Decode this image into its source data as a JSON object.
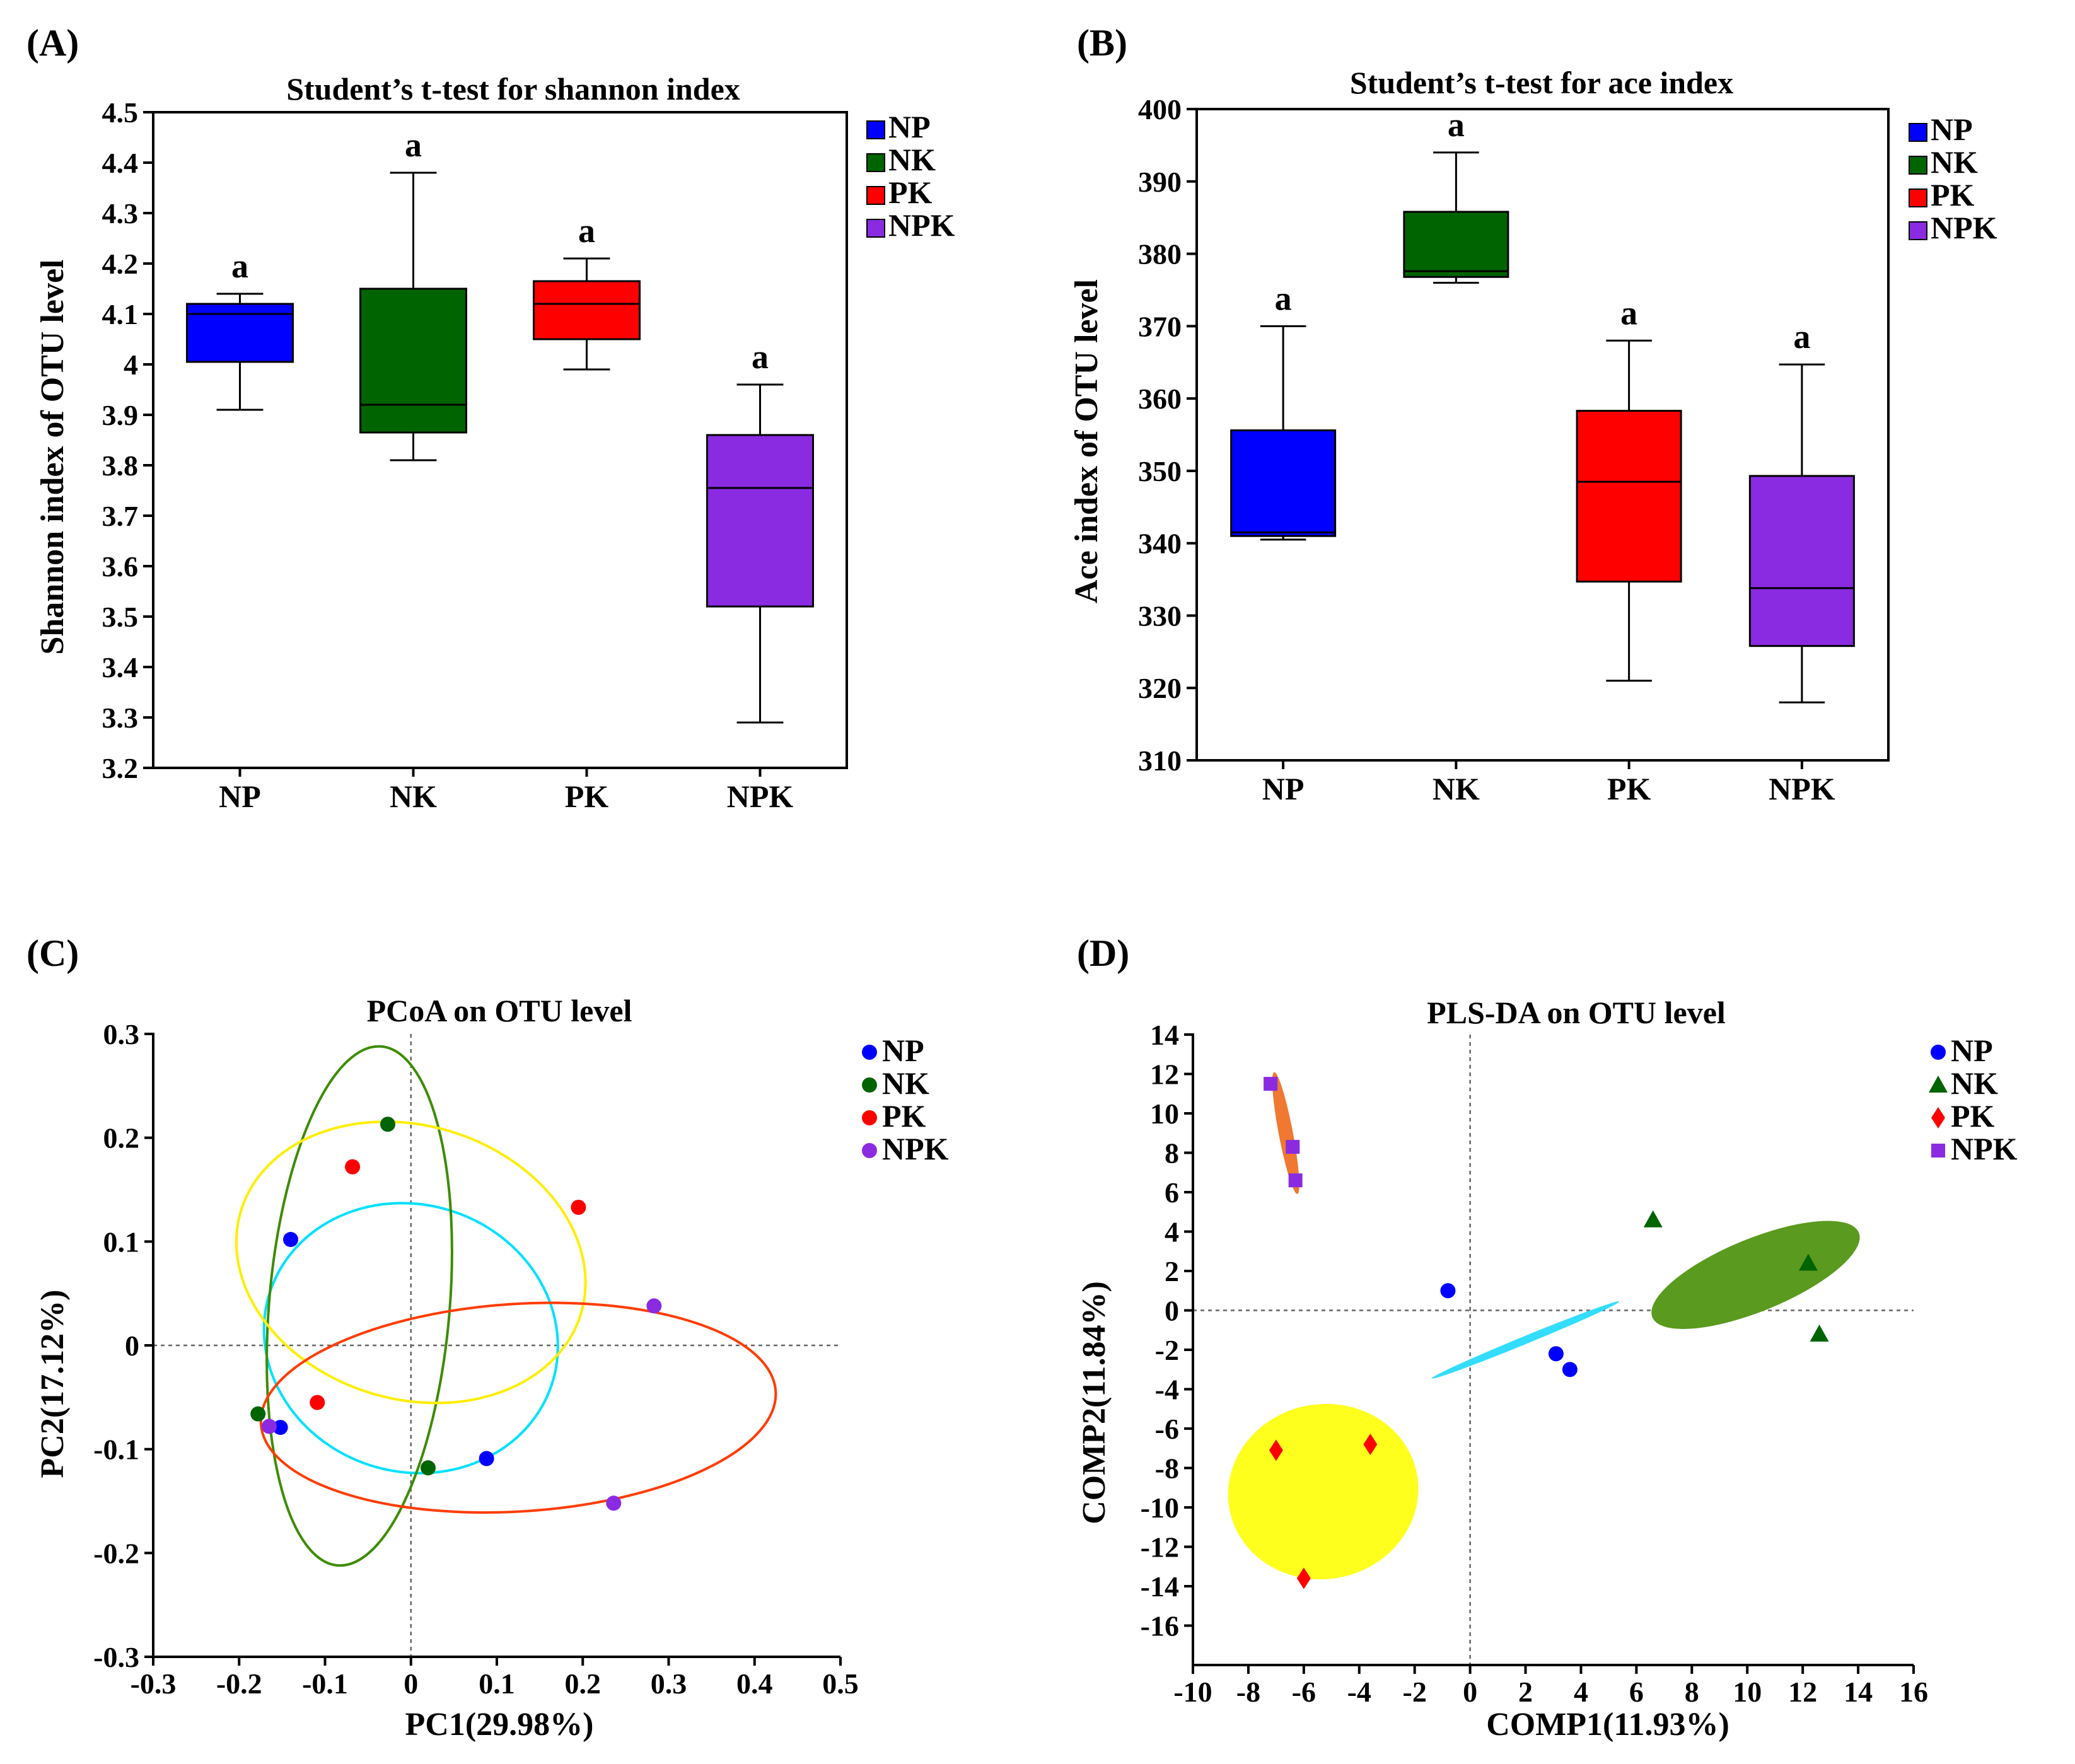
{
  "chart_data": [
    {
      "type": "box",
      "panel_label": "(A)",
      "title": "Student’s t-test for shannon index",
      "xlabel": "",
      "ylabel": "Shannon index of OTU level",
      "ylim": [
        3.2,
        4.5
      ],
      "yticks": [
        3.2,
        3.3,
        3.4,
        3.5,
        3.6,
        3.7,
        3.8,
        3.9,
        4,
        4.1,
        4.2,
        4.3,
        4.4,
        4.5
      ],
      "ytick_labels": [
        "3.2",
        "3.3",
        "3.4",
        "3.5",
        "3.6",
        "3.7",
        "3.8",
        "3.9",
        "4",
        "4.1",
        "4.2",
        "4.3",
        "4.4",
        "4.5"
      ],
      "categories": [
        "NP",
        "NK",
        "PK",
        "NPK"
      ],
      "colors": [
        "#0000ff",
        "#006400",
        "#ff0000",
        "#8a2be2"
      ],
      "boxes": [
        {
          "name": "NP",
          "min": 3.91,
          "q1": 4.005,
          "median": 4.1,
          "q3": 4.12,
          "max": 4.14,
          "sig": "a"
        },
        {
          "name": "NK",
          "min": 3.81,
          "q1": 3.865,
          "median": 3.92,
          "q3": 4.15,
          "max": 4.38,
          "sig": "a"
        },
        {
          "name": "PK",
          "min": 3.99,
          "q1": 4.05,
          "median": 4.12,
          "q3": 4.165,
          "max": 4.21,
          "sig": "a"
        },
        {
          "name": "NPK",
          "min": 3.29,
          "q1": 3.52,
          "median": 3.755,
          "q3": 3.86,
          "max": 3.96,
          "sig": "a"
        }
      ],
      "legend": [
        {
          "label": "NP",
          "color": "#0000ff"
        },
        {
          "label": "NK",
          "color": "#006400"
        },
        {
          "label": "PK",
          "color": "#ff0000"
        },
        {
          "label": "NPK",
          "color": "#8a2be2"
        }
      ]
    },
    {
      "type": "box",
      "panel_label": "(B)",
      "title": "Student’s t-test for ace index",
      "xlabel": "",
      "ylabel": "Ace index of OTU level",
      "ylim": [
        310,
        400
      ],
      "yticks": [
        310,
        320,
        330,
        340,
        350,
        360,
        370,
        380,
        390,
        400
      ],
      "ytick_labels": [
        "310",
        "320",
        "330",
        "340",
        "350",
        "360",
        "370",
        "380",
        "390",
        "400"
      ],
      "categories": [
        "NP",
        "NK",
        "PK",
        "NPK"
      ],
      "colors": [
        "#0000ff",
        "#006400",
        "#ff0000",
        "#8a2be2"
      ],
      "boxes": [
        {
          "name": "NP",
          "min": 340.5,
          "q1": 341.0,
          "median": 341.5,
          "q3": 355.6,
          "max": 370.0,
          "sig": "a"
        },
        {
          "name": "NK",
          "min": 376.0,
          "q1": 376.8,
          "median": 377.6,
          "q3": 385.8,
          "max": 394.0,
          "sig": "a"
        },
        {
          "name": "PK",
          "min": 321.0,
          "q1": 334.7,
          "median": 348.5,
          "q3": 358.3,
          "max": 368.0,
          "sig": "a"
        },
        {
          "name": "NPK",
          "min": 318.0,
          "q1": 325.8,
          "median": 333.8,
          "q3": 349.3,
          "max": 364.7,
          "sig": "a"
        }
      ],
      "legend": [
        {
          "label": "NP",
          "color": "#0000ff"
        },
        {
          "label": "NK",
          "color": "#006400"
        },
        {
          "label": "PK",
          "color": "#ff0000"
        },
        {
          "label": "NPK",
          "color": "#8a2be2"
        }
      ]
    },
    {
      "type": "scatter",
      "panel_label": "(C)",
      "title": "PCoA on OTU level",
      "xlabel": "PC1(29.98%)",
      "ylabel": "PC2(17.12%)",
      "xlim": [
        -0.3,
        0.5
      ],
      "ylim": [
        -0.3,
        0.3
      ],
      "xticks": [
        -0.3,
        -0.2,
        -0.1,
        0,
        0.1,
        0.2,
        0.3,
        0.4,
        0.5
      ],
      "xtick_labels": [
        "-0.3",
        "-0.2",
        "-0.1",
        "0",
        "0.1",
        "0.2",
        "0.3",
        "0.4",
        "0.5"
      ],
      "yticks": [
        -0.3,
        -0.2,
        -0.1,
        0,
        0.1,
        0.2,
        0.3
      ],
      "ytick_labels": [
        "-0.3",
        "-0.2",
        "-0.1",
        "0",
        "0.1",
        "0.2",
        "0.3"
      ],
      "series": [
        {
          "name": "NP",
          "color": "#0000ff",
          "marker": "circle",
          "points": [
            [
              -0.14,
              0.102
            ],
            [
              -0.152,
              -0.079
            ],
            [
              0.088,
              -0.109
            ]
          ],
          "ellipse": {
            "cx": 0.0,
            "cy": 0.007,
            "rx": 0.17,
            "ry": 0.13,
            "angle": -15,
            "stroke": "#00e0ff",
            "fill": "none"
          }
        },
        {
          "name": "NK",
          "color": "#006400",
          "marker": "circle",
          "points": [
            [
              -0.027,
              0.213
            ],
            [
              -0.178,
              -0.066
            ],
            [
              0.02,
              -0.118
            ]
          ],
          "ellipse": {
            "cx": -0.06,
            "cy": 0.038,
            "rx": 0.105,
            "ry": 0.251,
            "angle": -4,
            "stroke": "#3c8c00",
            "fill": "none"
          }
        },
        {
          "name": "PK",
          "color": "#ff0000",
          "marker": "circle",
          "points": [
            [
              -0.068,
              0.172
            ],
            [
              0.195,
              0.133
            ],
            [
              -0.109,
              -0.055
            ]
          ],
          "ellipse": {
            "cx": 0.0,
            "cy": 0.08,
            "rx": 0.204,
            "ry": 0.133,
            "angle": -14,
            "stroke": "#ffee00",
            "fill": "none"
          }
        },
        {
          "name": "NPK",
          "color": "#8a2be2",
          "marker": "circle",
          "points": [
            [
              0.283,
              0.038
            ],
            [
              0.236,
              -0.152
            ],
            [
              -0.165,
              -0.078
            ]
          ],
          "ellipse": {
            "cx": 0.125,
            "cy": -0.06,
            "rx": 0.3,
            "ry": 0.1,
            "angle": 3,
            "stroke": "#ff3c00",
            "fill": "none"
          }
        }
      ],
      "legend": [
        {
          "label": "NP",
          "color": "#0000ff",
          "marker": "circle"
        },
        {
          "label": "NK",
          "color": "#006400",
          "marker": "circle"
        },
        {
          "label": "PK",
          "color": "#ff0000",
          "marker": "circle"
        },
        {
          "label": "NPK",
          "color": "#8a2be2",
          "marker": "circle"
        }
      ]
    },
    {
      "type": "scatter",
      "panel_label": "(D)",
      "title": "PLS-DA on OTU level",
      "xlabel": "COMP1(11.93%)",
      "ylabel": "COMP2(11.84%)",
      "xlim": [
        -10,
        16
      ],
      "ylim": [
        -18,
        14
      ],
      "xticks": [
        -10,
        -8,
        -6,
        -4,
        -2,
        0,
        2,
        4,
        6,
        8,
        10,
        12,
        14,
        16
      ],
      "xtick_labels": [
        "-10",
        "-8",
        "-6",
        "-4",
        "-2",
        "0",
        "2",
        "4",
        "6",
        "8",
        "10",
        "12",
        "14",
        "16"
      ],
      "yticks": [
        -16,
        -14,
        -12,
        -10,
        -8,
        -6,
        -4,
        -2,
        0,
        2,
        4,
        6,
        8,
        10,
        12,
        14
      ],
      "ytick_labels": [
        "-16",
        "-14",
        "-12",
        "-10",
        "-8",
        "-6",
        "-4",
        "-2",
        "0",
        "2",
        "4",
        "6",
        "8",
        "10",
        "12",
        "14"
      ],
      "series": [
        {
          "name": "NP",
          "color": "#0000ff",
          "marker": "circle",
          "points": [
            [
              -0.8,
              1.0
            ],
            [
              3.1,
              -2.2
            ],
            [
              3.6,
              -3.0
            ]
          ],
          "ellipse": {
            "cx": 2.0,
            "cy": -1.5,
            "rx": 3.9,
            "ry": 0.18,
            "angle": 30,
            "stroke": "none",
            "fill": "#33ddff"
          }
        },
        {
          "name": "NK",
          "color": "#006400",
          "marker": "triangle",
          "points": [
            [
              6.6,
              4.6
            ],
            [
              12.2,
              2.4
            ],
            [
              12.6,
              -1.2
            ]
          ],
          "ellipse": {
            "cx": 10.3,
            "cy": 1.8,
            "rx": 4.3,
            "ry": 1.65,
            "angle": 30,
            "stroke": "none",
            "fill": "#5a9a1e"
          }
        },
        {
          "name": "PK",
          "color": "#ff0000",
          "marker": "diamond",
          "points": [
            [
              -7.0,
              -7.1
            ],
            [
              -3.6,
              -6.8
            ],
            [
              -6.0,
              -13.6
            ]
          ],
          "ellipse": {
            "cx": -5.3,
            "cy": -9.2,
            "rx": 3.5,
            "ry": 4.3,
            "angle": 15,
            "stroke": "none",
            "fill": "#ffff1e"
          }
        },
        {
          "name": "NPK",
          "color": "#8a2be2",
          "marker": "square",
          "points": [
            [
              -7.2,
              11.5
            ],
            [
              -6.4,
              8.3
            ],
            [
              -6.3,
              6.6
            ]
          ],
          "ellipse": {
            "cx": -6.65,
            "cy": 9.0,
            "rx": 0.26,
            "ry": 3.05,
            "angle": 15,
            "stroke": "none",
            "fill": "#f07830"
          }
        }
      ],
      "legend": [
        {
          "label": "NP",
          "color": "#0000ff",
          "marker": "circle"
        },
        {
          "label": "NK",
          "color": "#006400",
          "marker": "triangle"
        },
        {
          "label": "PK",
          "color": "#ff0000",
          "marker": "diamond"
        },
        {
          "label": "NPK",
          "color": "#8a2be2",
          "marker": "square"
        }
      ]
    }
  ]
}
